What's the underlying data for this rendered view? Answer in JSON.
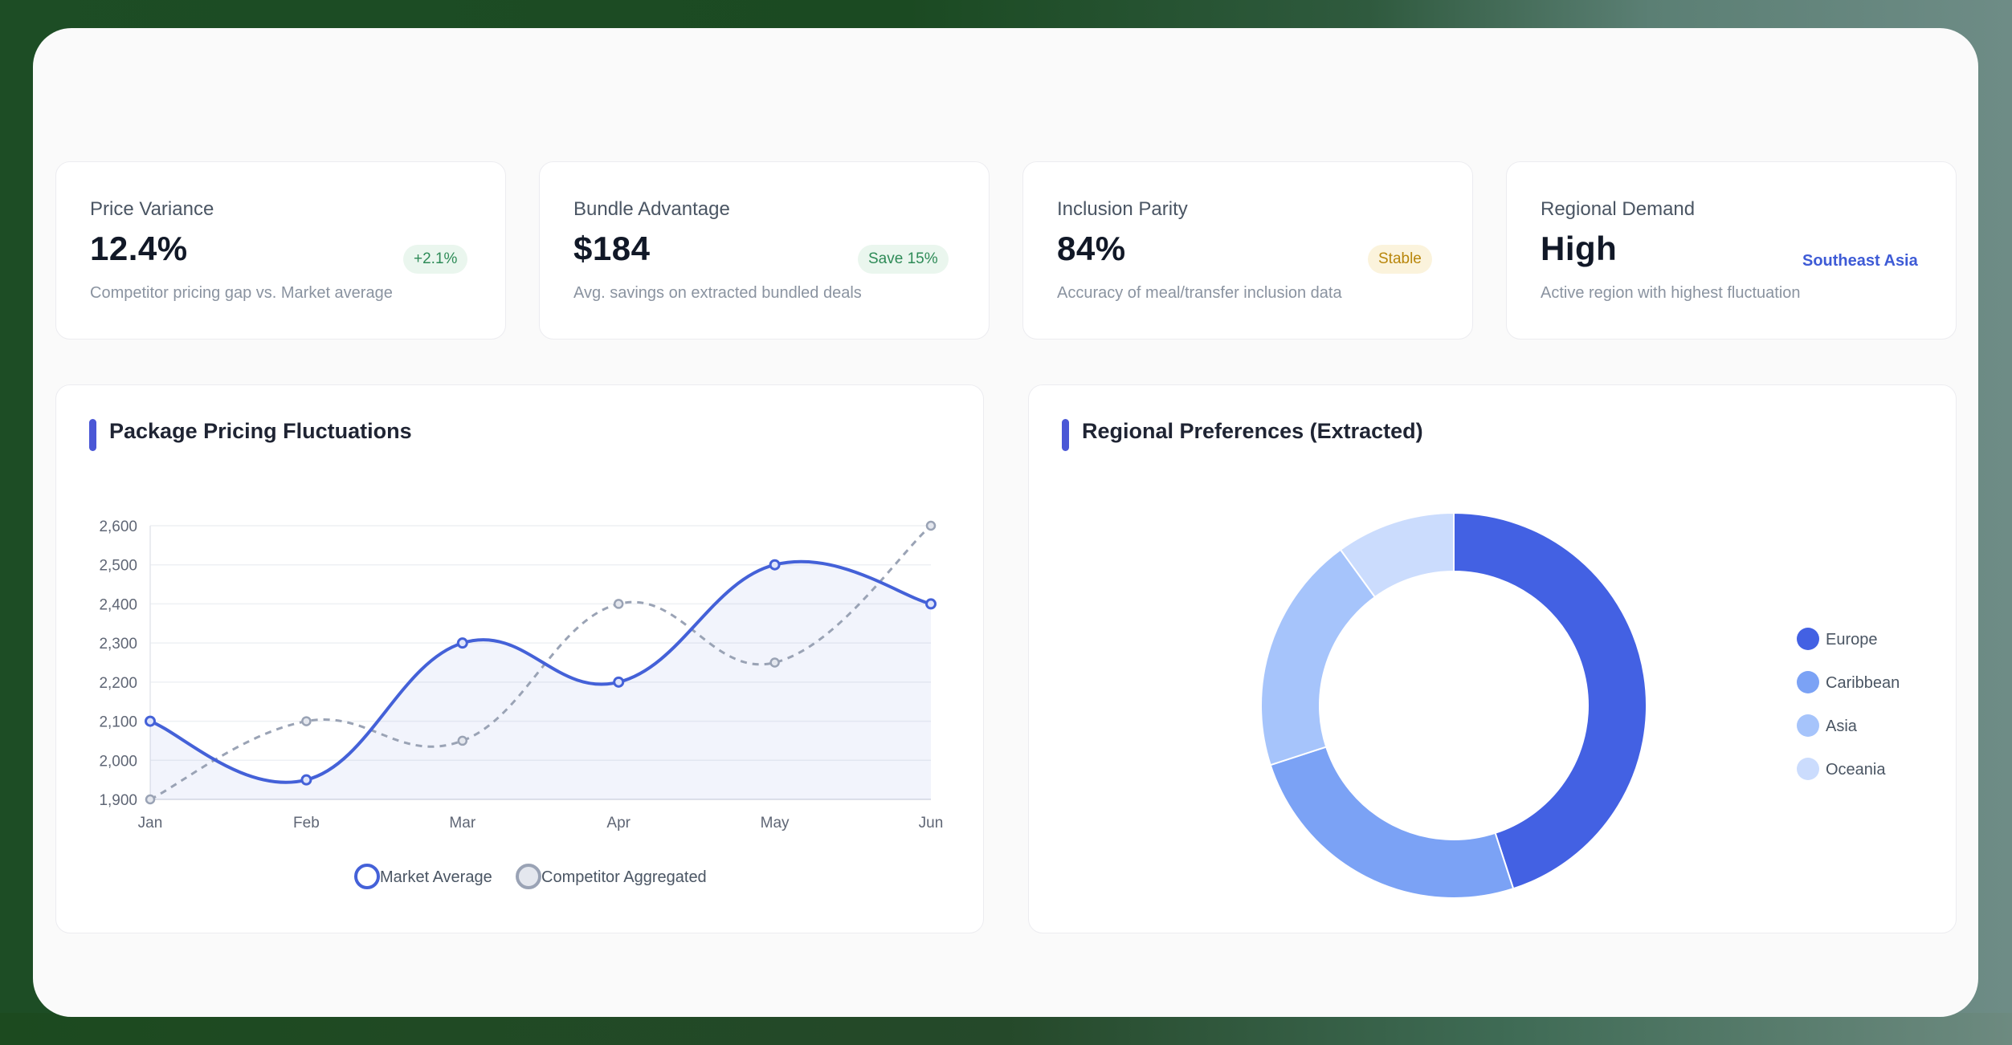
{
  "stats": [
    {
      "title": "Price Variance",
      "value": "12.4%",
      "badge": "+2.1%",
      "desc": "Competitor pricing gap vs. Market average"
    },
    {
      "title": "Bundle Advantage",
      "value": "$184",
      "badge": "Save 15%",
      "desc": "Avg. savings on extracted bundled deals"
    },
    {
      "title": "Inclusion Parity",
      "value": "84%",
      "badge": "Stable",
      "desc": "Accuracy of meal/transfer inclusion data"
    },
    {
      "title": "Regional Demand",
      "value": "High",
      "badge": "Southeast Asia",
      "desc": "Active region with highest fluctuation"
    }
  ],
  "colors": {
    "market": "#4461d8",
    "competitor": "#9aa3b5",
    "europe": "#4361e3",
    "caribbean": "#7ba2f5",
    "asia": "#a6c4fb",
    "oceania": "#cbdcfd"
  },
  "line_section": {
    "title": "Package Pricing Fluctuations"
  },
  "donut_section": {
    "title": "Regional Preferences (Extracted)"
  },
  "chart_data": [
    {
      "type": "line",
      "title": "Package Pricing Fluctuations",
      "categories": [
        "Jan",
        "Feb",
        "Mar",
        "Apr",
        "May",
        "Jun"
      ],
      "yticks": [
        "2,600",
        "2,500",
        "2,400",
        "2,300",
        "2,200",
        "2,100",
        "2,000",
        "1,900"
      ],
      "ylim": [
        1900,
        2600
      ],
      "grid": true,
      "legend": "bottom",
      "series": [
        {
          "name": "Market Average",
          "values": [
            2100,
            1950,
            2300,
            2200,
            2500,
            2400
          ],
          "style": "solid",
          "fill": true
        },
        {
          "name": "Competitor Aggregated",
          "values": [
            1900,
            2100,
            2050,
            2400,
            2250,
            2600
          ],
          "style": "dashed",
          "fill": false
        }
      ]
    },
    {
      "type": "pie",
      "title": "Regional Preferences (Extracted)",
      "donut": true,
      "legend": "right",
      "labels": [
        "Europe",
        "Caribbean",
        "Asia",
        "Oceania"
      ],
      "values": [
        45,
        25,
        20,
        10
      ]
    }
  ]
}
